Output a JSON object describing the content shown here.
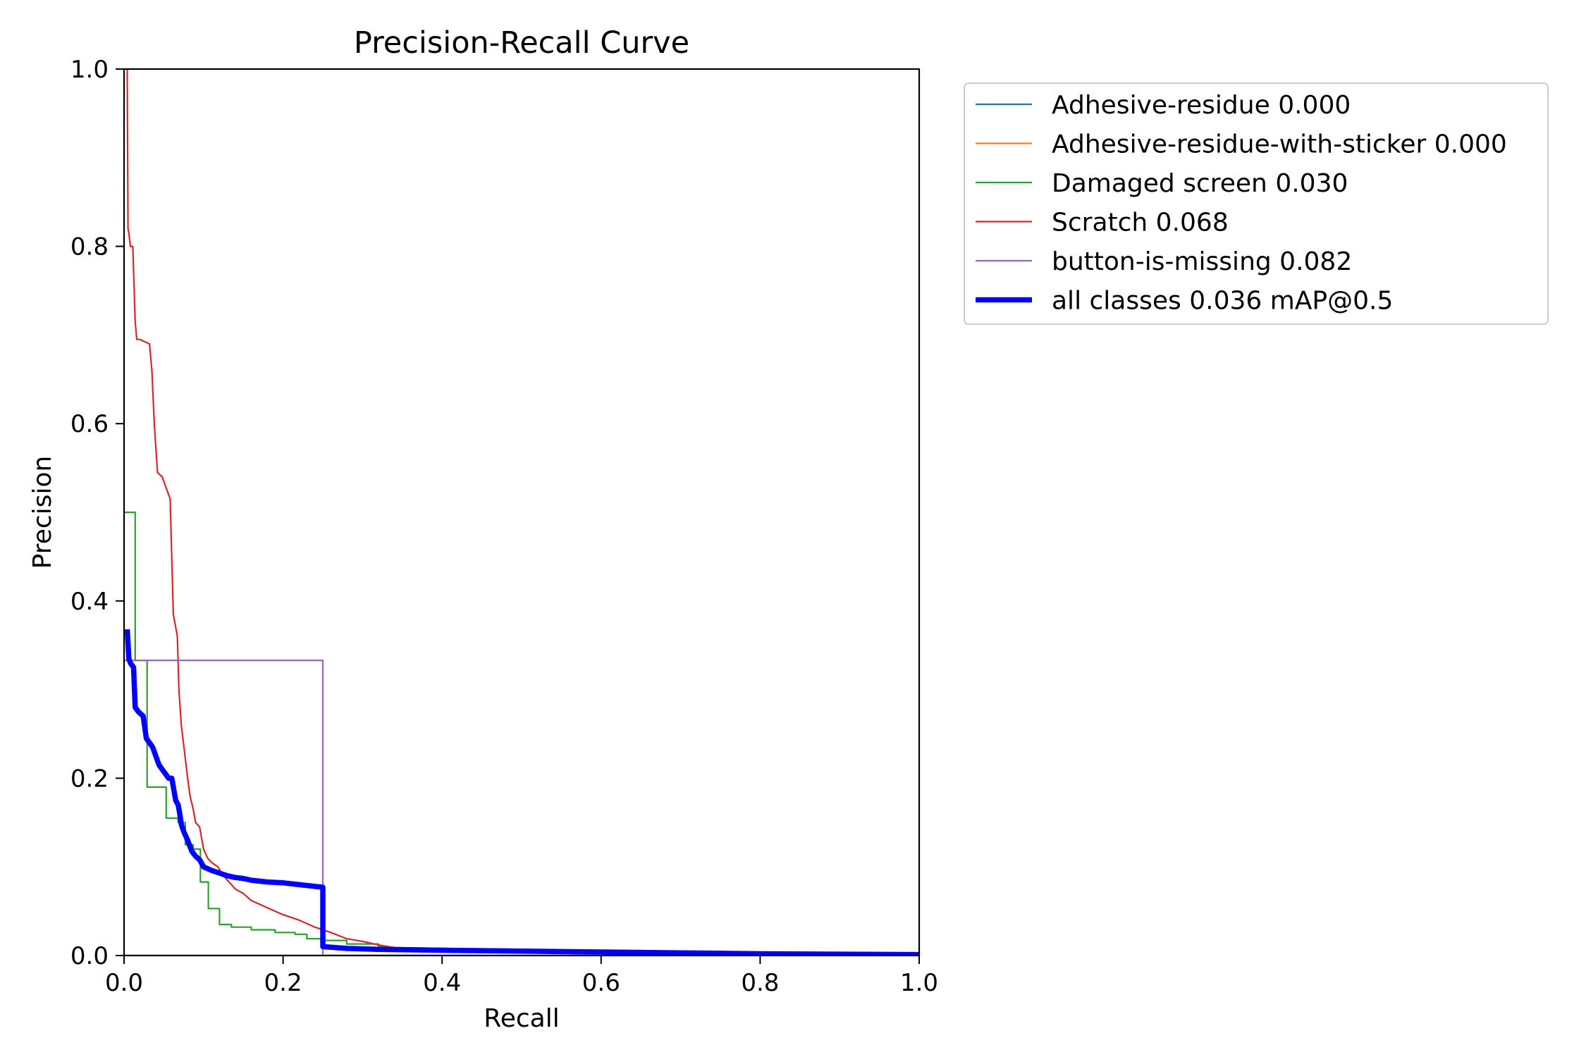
{
  "chart_data": {
    "type": "line",
    "title": "Precision-Recall Curve",
    "xlabel": "Recall",
    "ylabel": "Precision",
    "xlim": [
      0.0,
      1.0
    ],
    "ylim": [
      0.0,
      1.0
    ],
    "xticks": [
      "0.0",
      "0.2",
      "0.4",
      "0.6",
      "0.8",
      "1.0"
    ],
    "yticks": [
      "0.0",
      "0.2",
      "0.4",
      "0.6",
      "0.8",
      "1.0"
    ],
    "grid": false,
    "legend_position": "outside-top-right",
    "series": [
      {
        "name": "Adhesive-residue 0.000",
        "color": "#1f77b4",
        "width": "thin",
        "x": [
          0.0,
          1.0
        ],
        "y": [
          0.0,
          0.0
        ]
      },
      {
        "name": "Adhesive-residue-with-sticker 0.000",
        "color": "#ff7f0e",
        "width": "thin",
        "x": [
          0.0,
          1.0
        ],
        "y": [
          0.0,
          0.0
        ]
      },
      {
        "name": "Damaged screen 0.030",
        "color": "#2ca02c",
        "width": "thin",
        "x": [
          0.0,
          0.0,
          0.014,
          0.014,
          0.029,
          0.029,
          0.053,
          0.053,
          0.068,
          0.068,
          0.077,
          0.077,
          0.087,
          0.087,
          0.096,
          0.096,
          0.106,
          0.106,
          0.12,
          0.12,
          0.135,
          0.135,
          0.16,
          0.16,
          0.19,
          0.19,
          0.215,
          0.215,
          0.23,
          0.23,
          0.25,
          0.25,
          0.28,
          0.28,
          0.32,
          0.32,
          0.38,
          0.5,
          0.7,
          1.0
        ],
        "y": [
          0.5,
          0.5,
          0.5,
          0.333,
          0.333,
          0.19,
          0.19,
          0.155,
          0.155,
          0.15,
          0.15,
          0.125,
          0.125,
          0.12,
          0.12,
          0.083,
          0.083,
          0.053,
          0.053,
          0.035,
          0.035,
          0.032,
          0.032,
          0.029,
          0.029,
          0.026,
          0.026,
          0.024,
          0.024,
          0.019,
          0.019,
          0.017,
          0.017,
          0.013,
          0.013,
          0.01,
          0.007,
          0.005,
          0.003,
          0.001
        ]
      },
      {
        "name": "Scratch 0.068",
        "color": "#d62728",
        "width": "thin",
        "x": [
          0.004,
          0.005,
          0.006,
          0.008,
          0.011,
          0.014,
          0.016,
          0.02,
          0.032,
          0.035,
          0.038,
          0.042,
          0.048,
          0.058,
          0.062,
          0.067,
          0.069,
          0.072,
          0.076,
          0.08,
          0.083,
          0.087,
          0.09,
          0.095,
          0.1,
          0.105,
          0.11,
          0.118,
          0.125,
          0.13,
          0.135,
          0.14,
          0.15,
          0.16,
          0.17,
          0.18,
          0.19,
          0.2,
          0.22,
          0.24,
          0.26,
          0.28,
          0.3,
          0.32,
          0.34,
          0.4,
          0.5,
          0.6,
          0.7,
          0.8,
          0.9,
          1.0
        ],
        "y": [
          1.0,
          0.82,
          0.815,
          0.8,
          0.8,
          0.715,
          0.695,
          0.695,
          0.69,
          0.66,
          0.6,
          0.545,
          0.54,
          0.515,
          0.385,
          0.36,
          0.3,
          0.26,
          0.23,
          0.2,
          0.18,
          0.165,
          0.15,
          0.145,
          0.12,
          0.11,
          0.105,
          0.1,
          0.09,
          0.085,
          0.08,
          0.075,
          0.07,
          0.062,
          0.058,
          0.054,
          0.05,
          0.046,
          0.04,
          0.032,
          0.026,
          0.019,
          0.016,
          0.012,
          0.009,
          0.008,
          0.007,
          0.005,
          0.004,
          0.003,
          0.002,
          0.001
        ]
      },
      {
        "name": "button-is-missing 0.082",
        "color": "#9467bd",
        "width": "thin",
        "x": [
          0.0,
          0.25,
          0.25,
          1.0
        ],
        "y": [
          0.333,
          0.333,
          0.0,
          0.0
        ]
      },
      {
        "name": "all classes 0.036 mAP@0.5",
        "color": "#0000ff",
        "width": "thick",
        "x": [
          0.004,
          0.006,
          0.008,
          0.012,
          0.014,
          0.018,
          0.024,
          0.028,
          0.032,
          0.036,
          0.04,
          0.044,
          0.048,
          0.052,
          0.056,
          0.06,
          0.065,
          0.068,
          0.07,
          0.072,
          0.075,
          0.08,
          0.085,
          0.09,
          0.095,
          0.1,
          0.11,
          0.12,
          0.13,
          0.14,
          0.15,
          0.16,
          0.18,
          0.2,
          0.22,
          0.24,
          0.25,
          0.25,
          0.28,
          0.32,
          0.4,
          0.5,
          0.6,
          0.7,
          0.8,
          0.9,
          1.0
        ],
        "y": [
          0.368,
          0.335,
          0.33,
          0.325,
          0.28,
          0.275,
          0.27,
          0.245,
          0.24,
          0.235,
          0.225,
          0.215,
          0.21,
          0.205,
          0.2,
          0.2,
          0.175,
          0.17,
          0.16,
          0.148,
          0.14,
          0.13,
          0.118,
          0.112,
          0.108,
          0.1,
          0.096,
          0.093,
          0.09,
          0.088,
          0.087,
          0.085,
          0.083,
          0.082,
          0.08,
          0.078,
          0.077,
          0.01,
          0.008,
          0.007,
          0.006,
          0.005,
          0.004,
          0.003,
          0.002,
          0.0015,
          0.001
        ]
      }
    ]
  }
}
